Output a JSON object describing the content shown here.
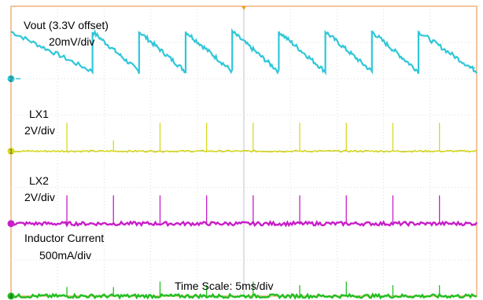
{
  "chart_data": {
    "type": "line",
    "title": "",
    "xlabel": "Time Scale: 5ms/div",
    "ylabel": "",
    "grid": true,
    "x_divisions": 10,
    "y_divisions": 8,
    "colors": {
      "vout": "#2fc7d8",
      "lx1": "#d8d820",
      "lx2": "#c81ec8",
      "inductor": "#20c020",
      "grid": "#d6dde5",
      "frame": "#f0b07a",
      "trigger": "#f0a020"
    },
    "series": [
      {
        "name": "Vout (3.3V offset)",
        "scale": "20mV/div",
        "marker": "",
        "pulse_x_div": [
          0.0,
          1.75,
          2.75,
          3.75,
          4.75,
          5.75,
          6.75,
          7.75,
          8.75
        ],
        "high_div": 3.3,
        "low_div": 2.2
      },
      {
        "name": "LX1",
        "scale": "2V/div",
        "marker": "1",
        "baseline_div": 0.0,
        "pulse_x_div": [
          1.2,
          2.2,
          3.2,
          4.2,
          5.2,
          6.2,
          7.2,
          8.2,
          9.2
        ],
        "pulse_height_div": [
          0.78,
          0.3,
          0.78,
          0.78,
          0.78,
          0.78,
          0.78,
          0.78,
          0.78
        ]
      },
      {
        "name": "LX2",
        "scale": "2V/div",
        "marker": "",
        "baseline_div": -2.0,
        "pulse_x_div": [
          1.2,
          2.2,
          3.2,
          4.2,
          5.2,
          6.2,
          7.2,
          8.2,
          9.2
        ],
        "pulse_height_div": [
          0.78,
          0.78,
          0.78,
          0.78,
          0.78,
          0.78,
          0.78,
          0.78,
          0.78
        ]
      },
      {
        "name": "Inductor Current",
        "scale": "500mA/div",
        "marker": "4",
        "baseline_div": -4.0,
        "pulse_x_div": [
          1.2,
          2.2,
          3.2,
          4.2,
          5.2,
          6.2,
          7.2,
          8.2,
          9.2
        ],
        "pulse_height_div": [
          0.25,
          0.25,
          0.4,
          0.3,
          0.4,
          0.3,
          0.4,
          0.3,
          0.3
        ]
      }
    ],
    "markers": {
      "vout_channel": "2"
    }
  }
}
